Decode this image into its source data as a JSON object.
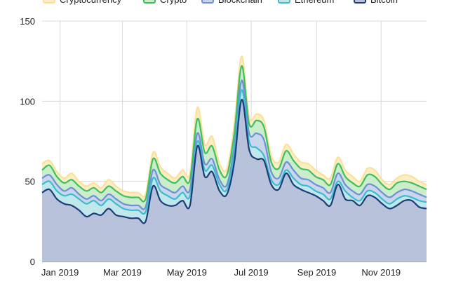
{
  "chart_data": {
    "type": "area",
    "stacked": false,
    "grid": true,
    "legend_position": "top",
    "ylim": [
      0,
      150
    ],
    "y_ticks": [
      0,
      50,
      100,
      150
    ],
    "x_tick_labels": [
      {
        "date": "2019-01-01",
        "label": "Jan 2019"
      },
      {
        "date": "2019-03-01",
        "label": "Mar 2019"
      },
      {
        "date": "2019-05-01",
        "label": "May 2019"
      },
      {
        "date": "2019-07-01",
        "label": "Jul 2019"
      },
      {
        "date": "2019-09-01",
        "label": "Sep 2019"
      },
      {
        "date": "2019-11-01",
        "label": "Nov 2019"
      }
    ],
    "x_range": [
      "2018-12-15",
      "2019-12-14"
    ],
    "x": [
      "2018-12-15",
      "2018-12-22",
      "2018-12-29",
      "2019-01-05",
      "2019-01-12",
      "2019-01-19",
      "2019-01-26",
      "2019-02-02",
      "2019-02-09",
      "2019-02-16",
      "2019-02-23",
      "2019-03-02",
      "2019-03-09",
      "2019-03-16",
      "2019-03-23",
      "2019-03-30",
      "2019-04-06",
      "2019-04-13",
      "2019-04-20",
      "2019-04-27",
      "2019-05-04",
      "2019-05-11",
      "2019-05-18",
      "2019-05-25",
      "2019-06-01",
      "2019-06-08",
      "2019-06-15",
      "2019-06-22",
      "2019-06-29",
      "2019-07-06",
      "2019-07-13",
      "2019-07-20",
      "2019-07-27",
      "2019-08-03",
      "2019-08-10",
      "2019-08-17",
      "2019-08-24",
      "2019-08-31",
      "2019-09-07",
      "2019-09-14",
      "2019-09-21",
      "2019-09-28",
      "2019-10-05",
      "2019-10-12",
      "2019-10-19",
      "2019-10-26",
      "2019-11-02",
      "2019-11-09",
      "2019-11-16",
      "2019-11-23",
      "2019-11-30",
      "2019-12-07",
      "2019-12-14"
    ],
    "series": [
      {
        "name": "Cryptocurrency",
        "color": "#f9e09b",
        "fill": "#fbeec4",
        "values": [
          61,
          63,
          56,
          52,
          55,
          50,
          47,
          49,
          46,
          51,
          47,
          44,
          43,
          43,
          42,
          68,
          59,
          55,
          52,
          57,
          55,
          96,
          73,
          78,
          61,
          58,
          85,
          128,
          90,
          92,
          88,
          66,
          62,
          73,
          67,
          62,
          61,
          57,
          54,
          52,
          65,
          57,
          53,
          50,
          58,
          57,
          51,
          48,
          52,
          54,
          53,
          50,
          48
        ]
      },
      {
        "name": "Crypto",
        "color": "#3fbf5f",
        "fill": "#c9eec9",
        "values": [
          57,
          60,
          53,
          49,
          51,
          47,
          44,
          46,
          43,
          47,
          44,
          41,
          40,
          40,
          39,
          64,
          55,
          51,
          49,
          53,
          51,
          89,
          68,
          72,
          57,
          54,
          80,
          122,
          86,
          88,
          84,
          62,
          58,
          69,
          63,
          58,
          57,
          53,
          51,
          48,
          61,
          53,
          49,
          47,
          54,
          53,
          48,
          45,
          49,
          50,
          49,
          47,
          45
        ]
      },
      {
        "name": "Blockchain",
        "color": "#6f8fd6",
        "fill": "#c9d6ee",
        "values": [
          52,
          54,
          48,
          44,
          46,
          42,
          39,
          41,
          38,
          42,
          39,
          36,
          35,
          35,
          34,
          57,
          48,
          45,
          43,
          47,
          45,
          80,
          61,
          64,
          51,
          48,
          72,
          113,
          80,
          80,
          76,
          56,
          52,
          62,
          57,
          52,
          51,
          48,
          46,
          43,
          55,
          48,
          44,
          42,
          48,
          47,
          43,
          40,
          43,
          45,
          44,
          42,
          40
        ]
      },
      {
        "name": "Ethereum",
        "color": "#3cbccb",
        "fill": "#bfe7ec",
        "values": [
          48,
          50,
          44,
          41,
          42,
          39,
          36,
          38,
          35,
          39,
          36,
          33,
          32,
          32,
          31,
          52,
          44,
          41,
          39,
          43,
          41,
          75,
          57,
          60,
          48,
          45,
          68,
          107,
          75,
          71,
          66,
          51,
          48,
          57,
          52,
          48,
          47,
          44,
          42,
          39,
          50,
          44,
          40,
          38,
          44,
          43,
          39,
          36,
          39,
          41,
          40,
          38,
          37
        ]
      },
      {
        "name": "Bitcoin",
        "color": "#1c3d7a",
        "fill": "#b8c2da",
        "values": [
          43,
          45,
          39,
          36,
          35,
          32,
          28,
          30,
          29,
          33,
          29,
          28,
          27,
          27,
          25,
          47,
          38,
          35,
          35,
          38,
          35,
          72,
          53,
          56,
          44,
          42,
          62,
          101,
          70,
          64,
          63,
          48,
          45,
          55,
          48,
          45,
          43,
          41,
          38,
          35,
          48,
          39,
          38,
          35,
          41,
          40,
          36,
          33,
          35,
          38,
          38,
          34,
          33
        ]
      }
    ]
  }
}
